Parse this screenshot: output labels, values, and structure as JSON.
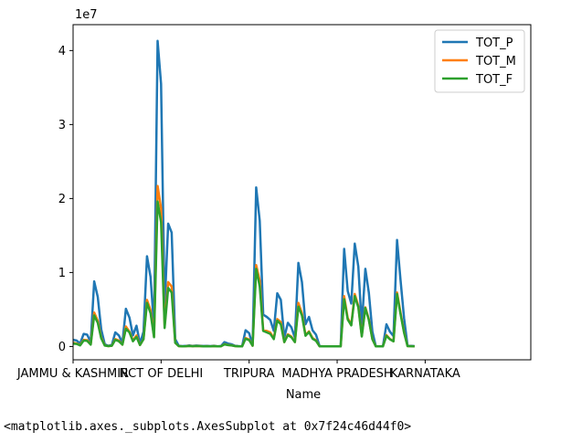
{
  "chart_data": {
    "type": "line",
    "xlabel": "Name",
    "ylabel": "",
    "y_exponent_label": "1e7",
    "ylim": [
      -1800000,
      43500000
    ],
    "yticks": [
      0,
      10000000,
      20000000,
      30000000,
      40000000
    ],
    "ytick_labels": [
      "0",
      "1",
      "2",
      "3",
      "4"
    ],
    "xlim": [
      0,
      130
    ],
    "xticks": [
      {
        "x": 0,
        "label": "JAMMU & KASHMIR"
      },
      {
        "x": 25,
        "label": "NCT OF DELHI"
      },
      {
        "x": 50,
        "label": "TRIPURA"
      },
      {
        "x": 75,
        "label": "MADHYA PRADESH"
      },
      {
        "x": 100,
        "label": "KARNATAKA"
      }
    ],
    "grid": false,
    "legend_position": "top-right",
    "series": [
      {
        "name": "TOT_P",
        "color": "#1f77b4",
        "points": [
          [
            0,
            900000
          ],
          [
            1,
            800000
          ],
          [
            2,
            400000
          ],
          [
            3,
            1700000
          ],
          [
            4,
            1600000
          ],
          [
            5,
            600000
          ],
          [
            6,
            8800000
          ],
          [
            7,
            6700000
          ],
          [
            8,
            2300000
          ],
          [
            9,
            300000
          ],
          [
            10,
            100000
          ],
          [
            11,
            200000
          ],
          [
            12,
            1900000
          ],
          [
            13,
            1500000
          ],
          [
            14,
            500000
          ],
          [
            15,
            5100000
          ],
          [
            16,
            3900000
          ],
          [
            17,
            1500000
          ],
          [
            18,
            2800000
          ],
          [
            19,
            400000
          ],
          [
            20,
            2000000
          ],
          [
            21,
            12200000
          ],
          [
            22,
            9400000
          ],
          [
            23,
            2600000
          ],
          [
            24,
            41300000
          ],
          [
            25,
            35500000
          ],
          [
            26,
            5300000
          ],
          [
            27,
            16600000
          ],
          [
            28,
            15400000
          ],
          [
            29,
            1000000
          ],
          [
            30,
            100000
          ],
          [
            31,
            50000
          ],
          [
            32,
            80000
          ],
          [
            33,
            150000
          ],
          [
            34,
            80000
          ],
          [
            35,
            120000
          ],
          [
            36,
            100000
          ],
          [
            37,
            60000
          ],
          [
            38,
            80000
          ],
          [
            39,
            50000
          ],
          [
            40,
            100000
          ],
          [
            41,
            30000
          ],
          [
            42,
            60000
          ],
          [
            43,
            600000
          ],
          [
            44,
            400000
          ],
          [
            45,
            300000
          ],
          [
            46,
            100000
          ],
          [
            47,
            50000
          ],
          [
            48,
            30000
          ],
          [
            49,
            2200000
          ],
          [
            50,
            1800000
          ],
          [
            51,
            200000
          ],
          [
            52,
            21500000
          ],
          [
            53,
            17000000
          ],
          [
            54,
            4300000
          ],
          [
            55,
            4000000
          ],
          [
            56,
            3600000
          ],
          [
            57,
            2100000
          ],
          [
            58,
            7200000
          ],
          [
            59,
            6300000
          ],
          [
            60,
            1200000
          ],
          [
            61,
            3200000
          ],
          [
            62,
            2600000
          ],
          [
            63,
            1200000
          ],
          [
            64,
            11300000
          ],
          [
            65,
            8700000
          ],
          [
            66,
            3000000
          ],
          [
            67,
            4000000
          ],
          [
            68,
            2200000
          ],
          [
            69,
            1600000
          ],
          [
            70,
            50000
          ],
          [
            71,
            30000
          ],
          [
            72,
            20000
          ],
          [
            73,
            20000
          ],
          [
            74,
            20000
          ],
          [
            75,
            20000
          ],
          [
            76,
            20000
          ],
          [
            77,
            13200000
          ],
          [
            78,
            7500000
          ],
          [
            79,
            5800000
          ],
          [
            80,
            13900000
          ],
          [
            81,
            10800000
          ],
          [
            82,
            2800000
          ],
          [
            83,
            10500000
          ],
          [
            84,
            7300000
          ],
          [
            85,
            2000000
          ],
          [
            86,
            20000
          ],
          [
            87,
            20000
          ],
          [
            88,
            20000
          ],
          [
            89,
            3000000
          ],
          [
            90,
            2000000
          ],
          [
            91,
            1400000
          ],
          [
            92,
            14400000
          ],
          [
            93,
            9000000
          ],
          [
            94,
            3800000
          ],
          [
            95,
            100000
          ],
          [
            96,
            80000
          ],
          [
            97,
            50000
          ]
        ]
      },
      {
        "name": "TOT_M",
        "color": "#ff7f0e",
        "points": [
          [
            0,
            500000
          ],
          [
            1,
            400000
          ],
          [
            2,
            200000
          ],
          [
            3,
            900000
          ],
          [
            4,
            850000
          ],
          [
            5,
            300000
          ],
          [
            6,
            4600000
          ],
          [
            7,
            3500000
          ],
          [
            8,
            1200000
          ],
          [
            9,
            150000
          ],
          [
            10,
            50000
          ],
          [
            11,
            100000
          ],
          [
            12,
            1000000
          ],
          [
            13,
            800000
          ],
          [
            14,
            250000
          ],
          [
            15,
            2700000
          ],
          [
            16,
            2000000
          ],
          [
            17,
            800000
          ],
          [
            18,
            1500000
          ],
          [
            19,
            200000
          ],
          [
            20,
            1000000
          ],
          [
            21,
            6300000
          ],
          [
            22,
            4900000
          ],
          [
            23,
            1350000
          ],
          [
            24,
            21700000
          ],
          [
            25,
            18700000
          ],
          [
            26,
            2800000
          ],
          [
            27,
            8700000
          ],
          [
            28,
            8100000
          ],
          [
            29,
            500000
          ],
          [
            30,
            50000
          ],
          [
            31,
            25000
          ],
          [
            32,
            40000
          ],
          [
            33,
            80000
          ],
          [
            34,
            40000
          ],
          [
            35,
            60000
          ],
          [
            36,
            50000
          ],
          [
            37,
            30000
          ],
          [
            38,
            40000
          ],
          [
            39,
            25000
          ],
          [
            40,
            50000
          ],
          [
            41,
            15000
          ],
          [
            42,
            30000
          ],
          [
            43,
            310000
          ],
          [
            44,
            210000
          ],
          [
            45,
            160000
          ],
          [
            46,
            50000
          ],
          [
            47,
            25000
          ],
          [
            48,
            15000
          ],
          [
            49,
            1150000
          ],
          [
            50,
            940000
          ],
          [
            51,
            100000
          ],
          [
            52,
            11000000
          ],
          [
            53,
            8900000
          ],
          [
            54,
            2200000
          ],
          [
            55,
            2100000
          ],
          [
            56,
            1900000
          ],
          [
            57,
            1100000
          ],
          [
            58,
            3700000
          ],
          [
            59,
            3300000
          ],
          [
            60,
            600000
          ],
          [
            61,
            1650000
          ],
          [
            62,
            1350000
          ],
          [
            63,
            600000
          ],
          [
            64,
            5900000
          ],
          [
            65,
            4500000
          ],
          [
            66,
            1550000
          ],
          [
            67,
            2050000
          ],
          [
            68,
            1150000
          ],
          [
            69,
            830000
          ],
          [
            70,
            25000
          ],
          [
            71,
            15000
          ],
          [
            72,
            10000
          ],
          [
            73,
            10000
          ],
          [
            74,
            10000
          ],
          [
            75,
            10000
          ],
          [
            76,
            10000
          ],
          [
            77,
            6800000
          ],
          [
            78,
            3850000
          ],
          [
            79,
            2950000
          ],
          [
            80,
            7100000
          ],
          [
            81,
            5500000
          ],
          [
            82,
            1450000
          ],
          [
            83,
            5300000
          ],
          [
            84,
            3700000
          ],
          [
            85,
            1020000
          ],
          [
            86,
            10000
          ],
          [
            87,
            10000
          ],
          [
            88,
            10000
          ],
          [
            89,
            1550000
          ],
          [
            90,
            1020000
          ],
          [
            91,
            710000
          ],
          [
            92,
            7300000
          ],
          [
            93,
            4600000
          ],
          [
            94,
            1950000
          ],
          [
            95,
            50000
          ],
          [
            96,
            40000
          ],
          [
            97,
            25000
          ]
        ]
      },
      {
        "name": "TOT_F",
        "color": "#2ca02c",
        "points": [
          [
            0,
            400000
          ],
          [
            1,
            350000
          ],
          [
            2,
            150000
          ],
          [
            3,
            800000
          ],
          [
            4,
            750000
          ],
          [
            5,
            250000
          ],
          [
            6,
            4200000
          ],
          [
            7,
            3200000
          ],
          [
            8,
            1100000
          ],
          [
            9,
            130000
          ],
          [
            10,
            50000
          ],
          [
            11,
            100000
          ],
          [
            12,
            900000
          ],
          [
            13,
            700000
          ],
          [
            14,
            250000
          ],
          [
            15,
            2400000
          ],
          [
            16,
            1900000
          ],
          [
            17,
            700000
          ],
          [
            18,
            1300000
          ],
          [
            19,
            200000
          ],
          [
            20,
            1000000
          ],
          [
            21,
            5900000
          ],
          [
            22,
            4500000
          ],
          [
            23,
            1250000
          ],
          [
            24,
            19600000
          ],
          [
            25,
            16800000
          ],
          [
            26,
            2500000
          ],
          [
            27,
            7900000
          ],
          [
            28,
            7300000
          ],
          [
            29,
            500000
          ],
          [
            30,
            50000
          ],
          [
            31,
            25000
          ],
          [
            32,
            40000
          ],
          [
            33,
            70000
          ],
          [
            34,
            40000
          ],
          [
            35,
            60000
          ],
          [
            36,
            50000
          ],
          [
            37,
            30000
          ],
          [
            38,
            40000
          ],
          [
            39,
            25000
          ],
          [
            40,
            50000
          ],
          [
            41,
            15000
          ],
          [
            42,
            30000
          ],
          [
            43,
            290000
          ],
          [
            44,
            190000
          ],
          [
            45,
            140000
          ],
          [
            46,
            50000
          ],
          [
            47,
            25000
          ],
          [
            48,
            15000
          ],
          [
            49,
            1050000
          ],
          [
            50,
            860000
          ],
          [
            51,
            100000
          ],
          [
            52,
            10500000
          ],
          [
            53,
            8100000
          ],
          [
            54,
            2100000
          ],
          [
            55,
            1900000
          ],
          [
            56,
            1700000
          ],
          [
            57,
            1000000
          ],
          [
            58,
            3500000
          ],
          [
            59,
            3000000
          ],
          [
            60,
            600000
          ],
          [
            61,
            1550000
          ],
          [
            62,
            1250000
          ],
          [
            63,
            600000
          ],
          [
            64,
            5400000
          ],
          [
            65,
            4200000
          ],
          [
            66,
            1450000
          ],
          [
            67,
            1950000
          ],
          [
            68,
            1050000
          ],
          [
            69,
            770000
          ],
          [
            70,
            25000
          ],
          [
            71,
            15000
          ],
          [
            72,
            10000
          ],
          [
            73,
            10000
          ],
          [
            74,
            10000
          ],
          [
            75,
            10000
          ],
          [
            76,
            10000
          ],
          [
            77,
            6400000
          ],
          [
            78,
            3650000
          ],
          [
            79,
            2850000
          ],
          [
            80,
            6800000
          ],
          [
            81,
            5300000
          ],
          [
            82,
            1350000
          ],
          [
            83,
            5200000
          ],
          [
            84,
            3600000
          ],
          [
            85,
            980000
          ],
          [
            86,
            10000
          ],
          [
            87,
            10000
          ],
          [
            88,
            10000
          ],
          [
            89,
            1450000
          ],
          [
            90,
            980000
          ],
          [
            91,
            690000
          ],
          [
            92,
            7100000
          ],
          [
            93,
            4400000
          ],
          [
            94,
            1850000
          ],
          [
            95,
            50000
          ],
          [
            96,
            40000
          ],
          [
            97,
            25000
          ]
        ]
      }
    ]
  },
  "output_repr": "<matplotlib.axes._subplots.AxesSubplot at 0x7f24c46d44f0>"
}
